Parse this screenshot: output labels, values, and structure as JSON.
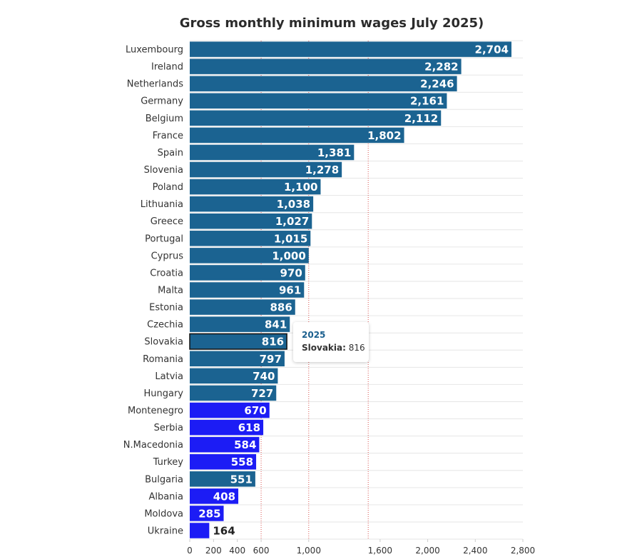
{
  "chart_data": {
    "type": "bar",
    "orientation": "horizontal",
    "title": "Gross monthly minimum wages July 2025)",
    "xlabel": "",
    "ylabel": "",
    "xlim": [
      0,
      2800
    ],
    "x_tick_values": [
      0,
      200,
      400,
      600,
      1000,
      1600,
      2000,
      2400,
      2800
    ],
    "x_tick_labels": [
      "0",
      "200",
      "400",
      "600",
      "1,000",
      "1,600",
      "2,000",
      "2,400",
      "2,800"
    ],
    "reference_lines": [
      600,
      1000,
      1500
    ],
    "grid": "horizontal row separators",
    "legend": "none",
    "series_name": "2025",
    "categories": [
      "Luxembourg",
      "Ireland",
      "Netherlands",
      "Germany",
      "Belgium",
      "France",
      "Spain",
      "Slovenia",
      "Poland",
      "Lithuania",
      "Greece",
      "Portugal",
      "Cyprus",
      "Croatia",
      "Malta",
      "Estonia",
      "Czechia",
      "Slovakia",
      "Romania",
      "Latvia",
      "Hungary",
      "Montenegro",
      "Serbia",
      "N.Macedonia",
      "Turkey",
      "Bulgaria",
      "Albania",
      "Moldova",
      "Ukraine"
    ],
    "values": [
      2704,
      2282,
      2246,
      2161,
      2112,
      1802,
      1381,
      1278,
      1100,
      1038,
      1027,
      1015,
      1000,
      970,
      961,
      886,
      841,
      816,
      797,
      740,
      727,
      670,
      618,
      584,
      558,
      551,
      408,
      285,
      164
    ],
    "value_labels": [
      "2,704",
      "2,282",
      "2,246",
      "2,161",
      "2,112",
      "1,802",
      "1,381",
      "1,278",
      "1,100",
      "1,038",
      "1,027",
      "1,015",
      "1,000",
      "970",
      "961",
      "886",
      "841",
      "816",
      "797",
      "740",
      "727",
      "670",
      "618",
      "584",
      "558",
      "551",
      "408",
      "285",
      "164"
    ],
    "groups": [
      "eu",
      "eu",
      "eu",
      "eu",
      "eu",
      "eu",
      "eu",
      "eu",
      "eu",
      "eu",
      "eu",
      "eu",
      "eu",
      "eu",
      "eu",
      "eu",
      "eu",
      "eu",
      "eu",
      "eu",
      "eu",
      "non_eu",
      "non_eu",
      "non_eu",
      "non_eu",
      "eu",
      "non_eu",
      "non_eu",
      "non_eu"
    ],
    "colors": {
      "eu": "#1b6391",
      "non_eu": "#1c1cf5",
      "reference_line": "#d9534f",
      "grid": "#e6e6e6"
    },
    "highlighted": "Slovakia"
  },
  "tooltip": {
    "series": "2025",
    "category": "Slovakia:",
    "value": "816"
  }
}
